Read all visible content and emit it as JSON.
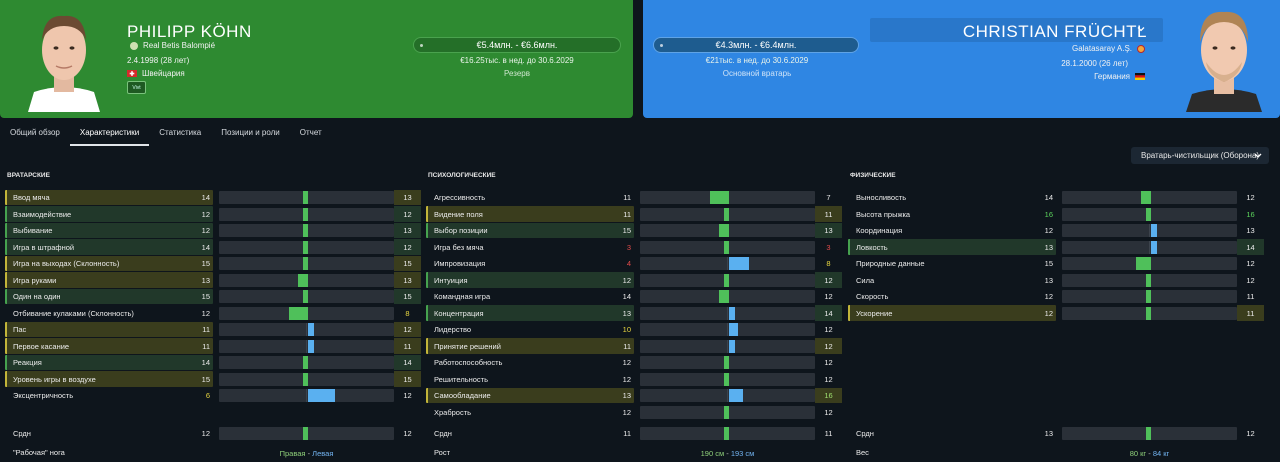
{
  "left_player": {
    "name": "PHILIPP KÖHN",
    "club": "Real Betis Balompié",
    "dob": "2.4.1998 (28 лет)",
    "nationality": "Швейцария",
    "value": "€5.4млн. - €6.6млн.",
    "contract": "€16.25тыс. в нед. до 30.6.2029",
    "role": "Резерв",
    "badge": "Vivt"
  },
  "right_player": {
    "name": "CHRISTIAN FRÜCHTL",
    "club": "Galatasaray A.Ş.",
    "dob": "28.1.2000 (26 лет)",
    "nationality": "Германия",
    "value": "€4.3млн. - €6.4млн.",
    "contract": "€21тыс. в нед. до 30.6.2029",
    "role": "Основной вратарь"
  },
  "tabs": [
    {
      "label": "Общий обзор",
      "active": false
    },
    {
      "label": "Характеристики",
      "active": true
    },
    {
      "label": "Статистика",
      "active": false
    },
    {
      "label": "Позиции и роли",
      "active": false
    },
    {
      "label": "Отчет",
      "active": false
    }
  ],
  "role_select": "Вратарь-чистильщик (Оборона)",
  "columns": [
    {
      "title": "ВРАТАРСКИЕ",
      "rows": [
        {
          "label": "Ввод мяча",
          "a": "14",
          "b": "13",
          "hl": "yellow",
          "pos": 0.48,
          "w": 0.03,
          "color": "#4fc05a"
        },
        {
          "label": "Взаимодействие",
          "a": "12",
          "b": "12",
          "hl": "green",
          "pos": 0.48,
          "w": 0.03,
          "color": "#4fc05a"
        },
        {
          "label": "Выбивание",
          "a": "12",
          "b": "13",
          "hl": "green",
          "pos": 0.48,
          "w": 0.03,
          "color": "#4fc05a"
        },
        {
          "label": "Игра в штрафной",
          "a": "14",
          "b": "12",
          "hl": "green",
          "pos": 0.48,
          "w": 0.03,
          "color": "#4fc05a"
        },
        {
          "label": "Игра на выходах (Склонность)",
          "a": "15",
          "b": "15",
          "hl": "yellow",
          "pos": 0.48,
          "w": 0.03,
          "color": "#4fc05a"
        },
        {
          "label": "Игра руками",
          "a": "13",
          "b": "13",
          "hl": "yellow",
          "pos": 0.45,
          "w": 0.06,
          "color": "#4fc05a"
        },
        {
          "label": "Один на один",
          "a": "15",
          "b": "15",
          "hl": "green",
          "pos": 0.48,
          "w": 0.03,
          "color": "#4fc05a"
        },
        {
          "label": "Отбивание кулаками (Склонность)",
          "a": "12",
          "b": "8",
          "hl": "plain",
          "pos": 0.4,
          "w": 0.11,
          "color": "#4fc05a",
          "bclass": "c-yellow"
        },
        {
          "label": "Пас",
          "a": "11",
          "b": "12",
          "hl": "yellow",
          "pos": 0.51,
          "w": 0.03,
          "color": "#5ab0f0"
        },
        {
          "label": "Первое касание",
          "a": "11",
          "b": "11",
          "hl": "yellow",
          "pos": 0.51,
          "w": 0.03,
          "color": "#5ab0f0"
        },
        {
          "label": "Реакция",
          "a": "14",
          "b": "14",
          "hl": "green",
          "pos": 0.48,
          "w": 0.03,
          "color": "#4fc05a"
        },
        {
          "label": "Уровень игры в воздухе",
          "a": "15",
          "b": "15",
          "hl": "yellow",
          "pos": 0.48,
          "w": 0.03,
          "color": "#4fc05a"
        },
        {
          "label": "Эксцентричность",
          "a": "6",
          "b": "12",
          "hl": "plain",
          "pos": 0.51,
          "w": 0.15,
          "color": "#5ab0f0",
          "aclass": "c-yellow"
        }
      ],
      "bottom": {
        "label": "Срдн",
        "a": "12",
        "b": "12",
        "pos": 0.48,
        "w": 0.03,
        "color": "#4fc05a"
      },
      "footer": {
        "label": "\"Рабочая\" нога",
        "left": "Правая",
        "sep": " - ",
        "right": "Левая"
      }
    },
    {
      "title": "ПСИХОЛОГИЧЕСКИЕ",
      "rows": [
        {
          "label": "Агрессивность",
          "a": "11",
          "b": "7",
          "hl": "plain",
          "pos": 0.4,
          "w": 0.11,
          "color": "#4fc05a"
        },
        {
          "label": "Видение поля",
          "a": "11",
          "b": "11",
          "hl": "yellow",
          "pos": 0.48,
          "w": 0.03,
          "color": "#4fc05a"
        },
        {
          "label": "Выбор позиции",
          "a": "15",
          "b": "13",
          "hl": "green",
          "pos": 0.45,
          "w": 0.06,
          "color": "#4fc05a"
        },
        {
          "label": "Игра без мяча",
          "a": "3",
          "b": "3",
          "hl": "plain",
          "pos": 0.48,
          "w": 0.03,
          "color": "#4fc05a",
          "aclass": "c-red",
          "bclass": "c-red"
        },
        {
          "label": "Импровизация",
          "a": "4",
          "b": "8",
          "hl": "plain",
          "pos": 0.51,
          "w": 0.11,
          "color": "#5ab0f0",
          "aclass": "c-red",
          "bclass": "c-yellow"
        },
        {
          "label": "Интуиция",
          "a": "12",
          "b": "12",
          "hl": "green",
          "pos": 0.48,
          "w": 0.03,
          "color": "#4fc05a"
        },
        {
          "label": "Командная игра",
          "a": "14",
          "b": "12",
          "hl": "plain",
          "pos": 0.45,
          "w": 0.06,
          "color": "#4fc05a"
        },
        {
          "label": "Концентрация",
          "a": "13",
          "b": "14",
          "hl": "green",
          "pos": 0.51,
          "w": 0.03,
          "color": "#5ab0f0"
        },
        {
          "label": "Лидерство",
          "a": "10",
          "b": "12",
          "hl": "plain",
          "pos": 0.51,
          "w": 0.05,
          "color": "#5ab0f0",
          "aclass": "c-yellow"
        },
        {
          "label": "Принятие решений",
          "a": "11",
          "b": "12",
          "hl": "yellow",
          "pos": 0.51,
          "w": 0.03,
          "color": "#5ab0f0"
        },
        {
          "label": "Работоспособность",
          "a": "12",
          "b": "12",
          "hl": "plain",
          "pos": 0.48,
          "w": 0.03,
          "color": "#4fc05a"
        },
        {
          "label": "Решительность",
          "a": "12",
          "b": "12",
          "hl": "plain",
          "pos": 0.48,
          "w": 0.03,
          "color": "#4fc05a"
        },
        {
          "label": "Самообладание",
          "a": "13",
          "b": "16",
          "hl": "yellow",
          "pos": 0.51,
          "w": 0.08,
          "color": "#5ab0f0",
          "bclass": "c-lime"
        },
        {
          "label": "Храбрость",
          "a": "12",
          "b": "12",
          "hl": "plain",
          "pos": 0.48,
          "w": 0.03,
          "color": "#4fc05a"
        }
      ],
      "bottom": {
        "label": "Срдн",
        "a": "11",
        "b": "11",
        "pos": 0.48,
        "w": 0.03,
        "color": "#4fc05a"
      },
      "footer": {
        "label": "Рост",
        "left": "190 см",
        "sep": " - ",
        "right": "193 см"
      }
    },
    {
      "title": "ФИЗИЧЕСКИЕ",
      "rows": [
        {
          "label": "Выносливость",
          "a": "14",
          "b": "12",
          "hl": "plain",
          "pos": 0.45,
          "w": 0.06,
          "color": "#4fc05a"
        },
        {
          "label": "Высота прыжка",
          "a": "16",
          "b": "16",
          "hl": "plain",
          "pos": 0.48,
          "w": 0.03,
          "color": "#4fc05a",
          "aclass": "c-green",
          "bclass": "c-green"
        },
        {
          "label": "Координация",
          "a": "12",
          "b": "13",
          "hl": "plain",
          "pos": 0.51,
          "w": 0.03,
          "color": "#5ab0f0"
        },
        {
          "label": "Ловкость",
          "a": "13",
          "b": "14",
          "hl": "green",
          "pos": 0.51,
          "w": 0.03,
          "color": "#5ab0f0"
        },
        {
          "label": "Природные данные",
          "a": "15",
          "b": "12",
          "hl": "plain",
          "pos": 0.42,
          "w": 0.09,
          "color": "#4fc05a"
        },
        {
          "label": "Сила",
          "a": "13",
          "b": "12",
          "hl": "plain",
          "pos": 0.48,
          "w": 0.03,
          "color": "#4fc05a"
        },
        {
          "label": "Скорость",
          "a": "12",
          "b": "11",
          "hl": "plain",
          "pos": 0.48,
          "w": 0.03,
          "color": "#4fc05a"
        },
        {
          "label": "Ускорение",
          "a": "12",
          "b": "11",
          "hl": "yellow",
          "pos": 0.48,
          "w": 0.03,
          "color": "#4fc05a"
        }
      ],
      "bottom": {
        "label": "Срдн",
        "a": "13",
        "b": "12",
        "pos": 0.48,
        "w": 0.03,
        "color": "#4fc05a"
      },
      "footer": {
        "label": "Вес",
        "left": "80 кг",
        "sep": " - ",
        "right": "84 кг"
      }
    }
  ],
  "colors": {
    "left_card": "#2e8a31",
    "right_card": "#2f86e3",
    "better_left": "#4fc05a",
    "better_right": "#5ab0f0"
  }
}
